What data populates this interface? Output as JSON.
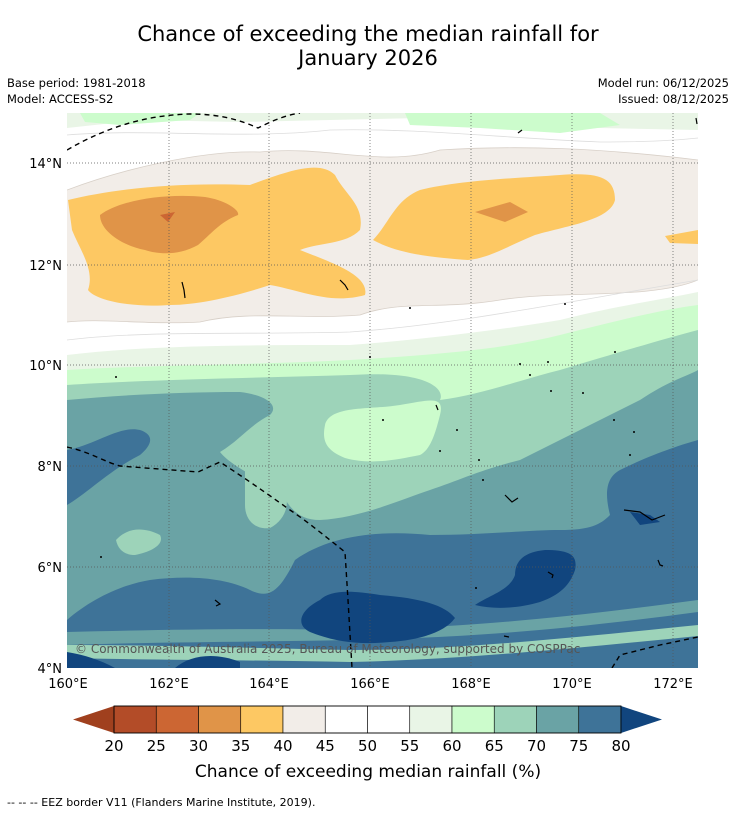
{
  "title_line1": "Chance of exceeding the median rainfall for",
  "title_line2": "January 2026",
  "base_period": "Base period: 1981-2018",
  "model": "Model: ACCESS-S2",
  "model_run": "Model run: 06/12/2025",
  "issued": "Issued: 08/12/2025",
  "copyright": "© Commonwealth of Australia 2025, Bureau of Meteorology, supported by COSPPac",
  "lat_ticks": [
    "14°N",
    "12°N",
    "10°N",
    "8°N",
    "6°N",
    "4°N"
  ],
  "lon_ticks": [
    "160°E",
    "162°E",
    "164°E",
    "166°E",
    "168°E",
    "170°E",
    "172°E"
  ],
  "colorbar": {
    "label": "Chance of exceeding median rainfall (%)",
    "ticks": [
      "20",
      "25",
      "30",
      "35",
      "40",
      "45",
      "50",
      "55",
      "60",
      "65",
      "70",
      "75",
      "80"
    ],
    "colors": [
      "#a0401e",
      "#b34c28",
      "#cc6633",
      "#e09448",
      "#fdc863",
      "#f2ede8",
      "#ffffff",
      "#ffffff",
      "#e9f5e6",
      "#ccfccc",
      "#9dd3b9",
      "#6aa3a5",
      "#3e7398",
      "#11457e"
    ]
  },
  "footer": "-- -- -- EEZ border V11 (Flanders Marine Institute, 2019)."
}
